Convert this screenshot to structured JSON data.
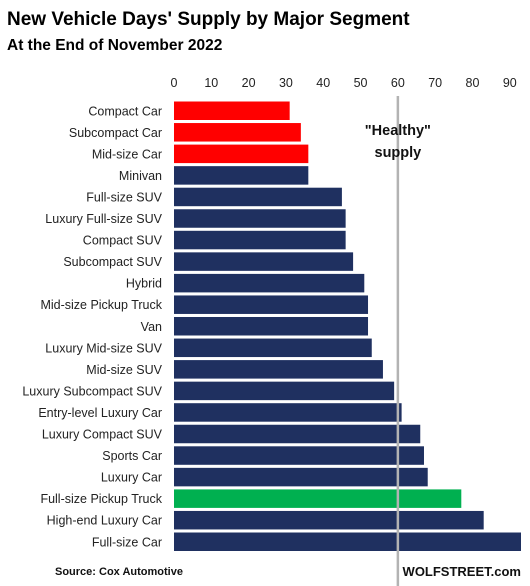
{
  "chart_data": {
    "type": "bar",
    "orientation": "horizontal",
    "title": "New Vehicle Days' Supply by Major Segment",
    "subtitle": "At the End of November 2022",
    "categories": [
      "Compact Car",
      "Subcompact Car",
      "Mid-size Car",
      "Minivan",
      "Full-size SUV",
      "Luxury Full-size SUV",
      "Compact SUV",
      "Subcompact SUV",
      "Hybrid",
      "Mid-size Pickup Truck",
      "Van",
      "Luxury Mid-size SUV",
      "Mid-size SUV",
      "Luxury Subcompact SUV",
      "Entry-level Luxury Car",
      "Luxury Compact SUV",
      "Sports Car",
      "Luxury Car",
      "Full-size Pickup Truck",
      "High-end Luxury Car",
      "Full-size Car"
    ],
    "values": [
      31,
      34,
      36,
      36,
      45,
      46,
      46,
      48,
      51,
      52,
      52,
      53,
      56,
      59,
      61,
      66,
      67,
      68,
      77,
      83,
      93
    ],
    "bar_colors": [
      "#ff0000",
      "#ff0000",
      "#ff0000",
      "#1f3060",
      "#1f3060",
      "#1f3060",
      "#1f3060",
      "#1f3060",
      "#1f3060",
      "#1f3060",
      "#1f3060",
      "#1f3060",
      "#1f3060",
      "#1f3060",
      "#1f3060",
      "#1f3060",
      "#1f3060",
      "#1f3060",
      "#00b050",
      "#1f3060",
      "#1f3060"
    ],
    "xlim": [
      0,
      93
    ],
    "xticks": [
      0,
      10,
      20,
      30,
      40,
      50,
      60,
      70,
      80,
      90
    ],
    "xaxis_position": "top",
    "reference_line": {
      "value": 60,
      "label_line1": "\"Healthy\"",
      "label_line2": "supply",
      "color": "#b3b3b3"
    },
    "grid": false,
    "legend": "none"
  },
  "footer": {
    "source": "Source: Cox Automotive",
    "brand": "WOLFSTREET.com"
  }
}
